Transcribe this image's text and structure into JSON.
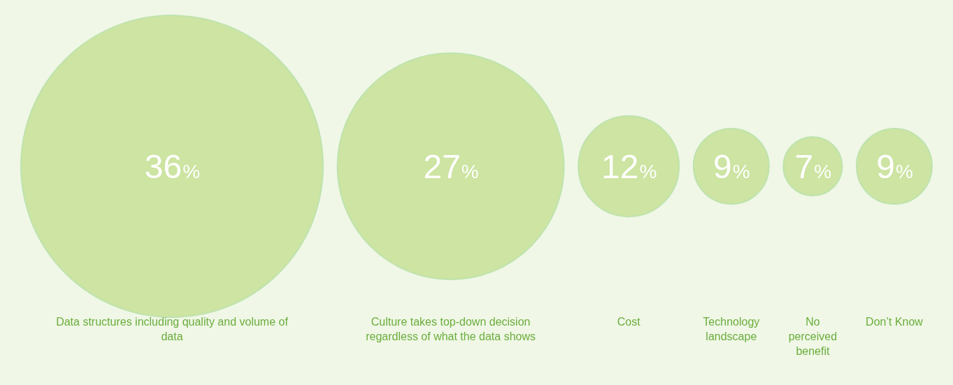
{
  "chart_data": {
    "type": "other",
    "categories": [
      "Data structures including quality and volume of data",
      "Culture takes top-down decision regardless of what the data shows",
      "Cost",
      "Technology landscape",
      "No perceived benefit",
      "Don’t Know"
    ],
    "values": [
      36,
      27,
      12,
      9,
      7,
      9
    ],
    "value_labels": [
      "36%",
      "27%",
      "12%",
      "9%",
      "7%",
      "9%"
    ],
    "color": "#cde4a2"
  }
}
